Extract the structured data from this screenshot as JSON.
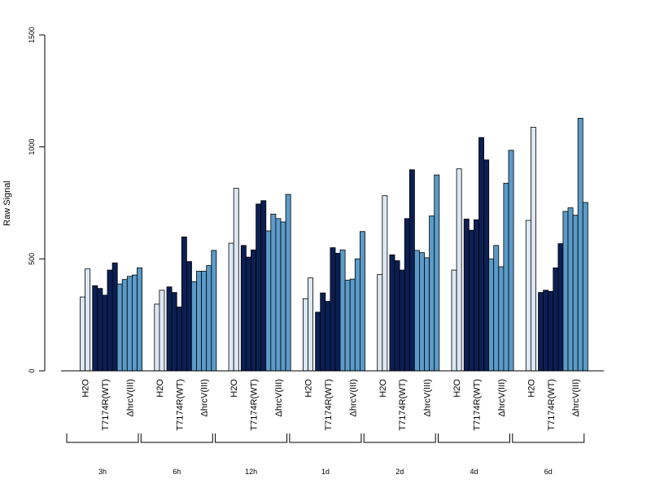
{
  "chart_data": {
    "type": "bar",
    "title": "",
    "xlabel": "",
    "ylabel": "Raw Signal",
    "ylim": [
      0,
      1500
    ],
    "yticks": [
      0,
      500,
      1000,
      1500
    ],
    "grid": false,
    "legend": "none",
    "groups": [
      {
        "label": "3h",
        "conditions": [
          {
            "name": "H2O",
            "values": [
              330,
              455
            ]
          },
          {
            "name": "T7174R(WT)",
            "values": [
              380,
              368,
              338,
              450,
              482
            ]
          },
          {
            "name": "ΔhrcV(III)",
            "values": [
              388,
              408,
              422,
              428,
              460
            ]
          }
        ]
      },
      {
        "label": "6h",
        "conditions": [
          {
            "name": "H2O",
            "values": [
              298,
              360
            ]
          },
          {
            "name": "T7174R(WT)",
            "values": [
              375,
              350,
              285,
              598,
              488
            ]
          },
          {
            "name": "ΔhrcV(III)",
            "values": [
              398,
              445,
              445,
              470,
              538
            ]
          }
        ]
      },
      {
        "label": "12h",
        "conditions": [
          {
            "name": "H2O",
            "values": [
              570,
              815
            ]
          },
          {
            "name": "T7174R(WT)",
            "values": [
              560,
              508,
              540,
              745,
              760
            ]
          },
          {
            "name": "ΔhrcV(III)",
            "values": [
              625,
              700,
              680,
              665,
              788
            ]
          }
        ]
      },
      {
        "label": "1d",
        "conditions": [
          {
            "name": "H2O",
            "values": [
              322,
              415
            ]
          },
          {
            "name": "T7174R(WT)",
            "values": [
              262,
              348,
              310,
              550,
              525
            ]
          },
          {
            "name": "ΔhrcV(III)",
            "values": [
              540,
              405,
              410,
              500,
              622
            ]
          }
        ]
      },
      {
        "label": "2d",
        "conditions": [
          {
            "name": "H2O",
            "values": [
              430,
              782
            ]
          },
          {
            "name": "T7174R(WT)",
            "values": [
              518,
              492,
              450,
              680,
              898
            ]
          },
          {
            "name": "ΔhrcV(III)",
            "values": [
              538,
              528,
              505,
              692,
              875
            ]
          }
        ]
      },
      {
        "label": "4d",
        "conditions": [
          {
            "name": "H2O",
            "values": [
              450,
              902
            ]
          },
          {
            "name": "T7174R(WT)",
            "values": [
              678,
              628,
              675,
              1042,
              942
            ]
          },
          {
            "name": "ΔhrcV(III)",
            "values": [
              500,
              560,
              465,
              838,
              985
            ]
          }
        ]
      },
      {
        "label": "6d",
        "conditions": [
          {
            "name": "H2O",
            "values": [
              672,
              1088
            ]
          },
          {
            "name": "T7174R(WT)",
            "values": [
              350,
              360,
              355,
              460,
              568
            ]
          },
          {
            "name": "ΔhrcV(III)",
            "values": [
              712,
              728,
              695,
              1128,
              752
            ]
          }
        ]
      }
    ]
  },
  "colors": {
    "H2O": "#dde8f4",
    "T7174R(WT)": "#0b1f54",
    "ΔhrcV(III)": "#5b9bc9",
    "axis": "#000000"
  }
}
